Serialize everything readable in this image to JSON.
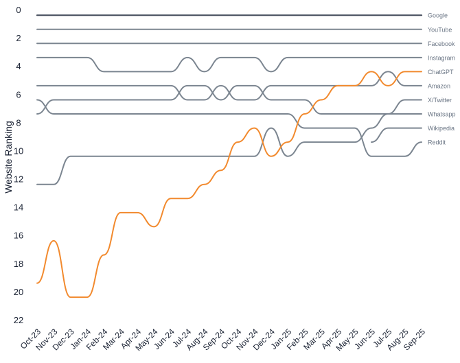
{
  "chart_data": {
    "type": "line",
    "ylabel": "Website Ranking",
    "ylim": [
      0,
      22
    ],
    "y_inverted": true,
    "y_ticks": [
      0,
      2,
      4,
      6,
      8,
      10,
      12,
      14,
      16,
      18,
      20,
      22
    ],
    "categories": [
      "Oct-23",
      "Nov-23",
      "Dec-23",
      "Jan-24",
      "Feb-24",
      "Mar-24",
      "Apr-24",
      "May-24",
      "Jun-24",
      "Jul-24",
      "Aug-24",
      "Sep-24",
      "Oct-24",
      "Nov-24",
      "Dec-24",
      "Jan-25",
      "Feb-25",
      "Mar-25",
      "Apr-25",
      "May-25",
      "Jun-25",
      "Jul-25",
      "Aug-25",
      "Sep-25"
    ],
    "colors": {
      "highlight": "#f28a2e",
      "default": "#7b8590",
      "top": "#4a5260"
    },
    "series": [
      {
        "name": "Google",
        "values": [
          0.4,
          0.4,
          0.4,
          0.4,
          0.4,
          0.4,
          0.4,
          0.4,
          0.4,
          0.4,
          0.4,
          0.4,
          0.4,
          0.4,
          0.4,
          0.4,
          0.4,
          0.4,
          0.4,
          0.4,
          0.4,
          0.4,
          0.4,
          0.4
        ]
      },
      {
        "name": "YouTube",
        "values": [
          1.4,
          1.4,
          1.4,
          1.4,
          1.4,
          1.4,
          1.4,
          1.4,
          1.4,
          1.4,
          1.4,
          1.4,
          1.4,
          1.4,
          1.4,
          1.4,
          1.4,
          1.4,
          1.4,
          1.4,
          1.4,
          1.4,
          1.4,
          1.4
        ]
      },
      {
        "name": "Facebook",
        "values": [
          2.4,
          2.4,
          2.4,
          2.4,
          2.4,
          2.4,
          2.4,
          2.4,
          2.4,
          2.4,
          2.4,
          2.4,
          2.4,
          2.4,
          2.4,
          2.4,
          2.4,
          2.4,
          2.4,
          2.4,
          2.4,
          2.4,
          2.4,
          2.4
        ]
      },
      {
        "name": "Instagram",
        "values": [
          3.4,
          3.4,
          3.4,
          3.4,
          4.4,
          4.4,
          4.4,
          4.4,
          4.4,
          3.4,
          4.4,
          3.4,
          3.4,
          3.4,
          4.4,
          3.4,
          3.4,
          3.4,
          3.4,
          3.4,
          3.4,
          3.4,
          3.4,
          3.4
        ]
      },
      {
        "name": "ChatGPT",
        "values": [
          19.4,
          16.4,
          20.4,
          20.4,
          17.4,
          14.4,
          14.4,
          15.4,
          13.4,
          13.4,
          12.4,
          11.4,
          9.4,
          8.4,
          10.4,
          9.4,
          7.4,
          6.4,
          5.4,
          5.4,
          4.4,
          5.4,
          4.4,
          4.4
        ]
      },
      {
        "name": "Amazon",
        "values": [
          5.4,
          5.4,
          5.4,
          5.4,
          5.4,
          5.4,
          5.4,
          5.4,
          5.4,
          6.4,
          6.4,
          5.4,
          6.4,
          6.4,
          5.4,
          5.4,
          5.4,
          5.4,
          5.4,
          5.4,
          5.4,
          4.4,
          5.4,
          5.4
        ]
      },
      {
        "name": "X/Twitter",
        "values": [
          7.4,
          6.4,
          6.4,
          6.4,
          6.4,
          6.4,
          6.4,
          6.4,
          6.4,
          5.4,
          5.4,
          6.4,
          5.4,
          5.4,
          6.4,
          6.4,
          6.4,
          7.4,
          7.4,
          7.4,
          7.4,
          7.4,
          6.4,
          6.4
        ]
      },
      {
        "name": "Reddit",
        "values": [
          6.4,
          7.4,
          7.4,
          7.4,
          7.4,
          7.4,
          7.4,
          7.4,
          7.4,
          7.4,
          7.4,
          7.4,
          7.4,
          7.4,
          7.4,
          7.4,
          8.4,
          8.4,
          8.4,
          8.4,
          10.4,
          10.4,
          10.4,
          9.4
        ]
      },
      {
        "name": "Whatsapp",
        "values": [
          12.4,
          12.4,
          10.4,
          10.4,
          10.4,
          10.4,
          10.4,
          10.4,
          10.4,
          10.4,
          10.4,
          10.4,
          10.4,
          10.4,
          8.4,
          10.4,
          9.4,
          9.4,
          9.4,
          9.4,
          8.4,
          7.4,
          7.4,
          7.4
        ]
      },
      {
        "name": "Wikipedia",
        "values": [
          null,
          null,
          null,
          null,
          null,
          null,
          null,
          null,
          null,
          null,
          null,
          null,
          null,
          null,
          null,
          null,
          null,
          null,
          null,
          null,
          9.4,
          8.4,
          8.4,
          8.4
        ]
      }
    ],
    "legend_placement": "right",
    "grid": false
  }
}
